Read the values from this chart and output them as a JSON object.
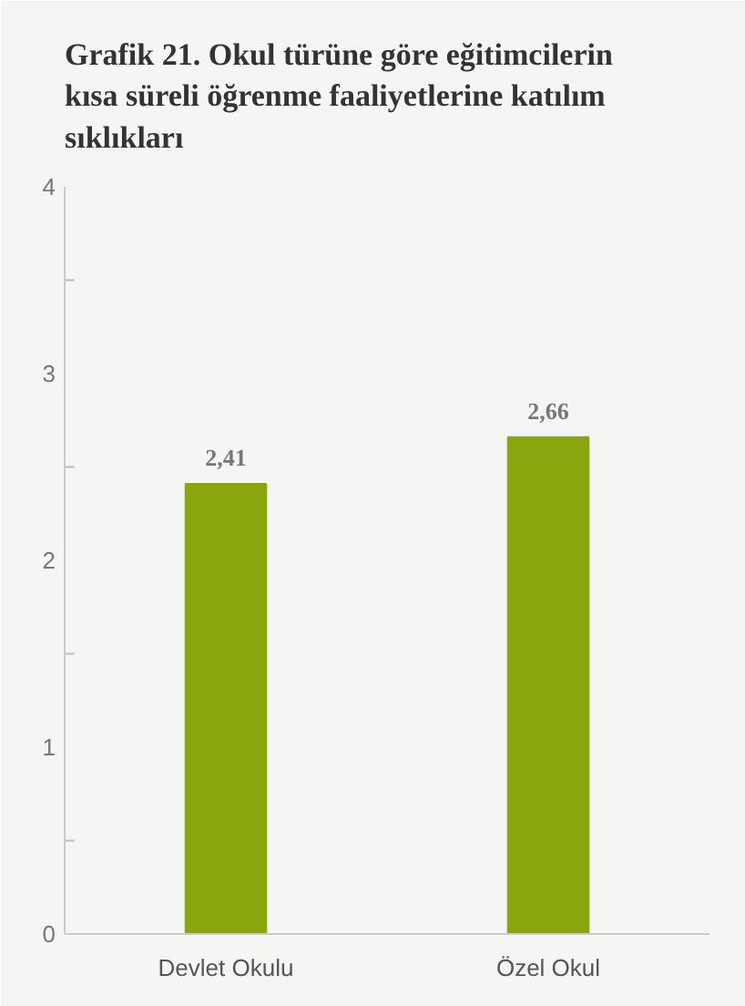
{
  "chart_data": {
    "type": "bar",
    "title": "Grafik 21. Okul türüne göre eğitimcilerin kısa süreli öğrenme faaliyetlerine katılım sıklıkları",
    "categories": [
      "Devlet Okulu",
      "Özel Okul"
    ],
    "values": [
      2.41,
      2.66
    ],
    "value_labels": [
      "2,41",
      "2,66"
    ],
    "color": "#8aa60e",
    "ylim": [
      0,
      4
    ],
    "yticks": [
      0,
      {
        "value": 0.5,
        "label": null
      },
      1,
      {
        "value": 1.5,
        "label": null
      },
      2,
      {
        "value": 2.5,
        "label": null
      },
      3,
      {
        "value": 3.5,
        "label": null
      },
      4
    ],
    "grid": false
  }
}
